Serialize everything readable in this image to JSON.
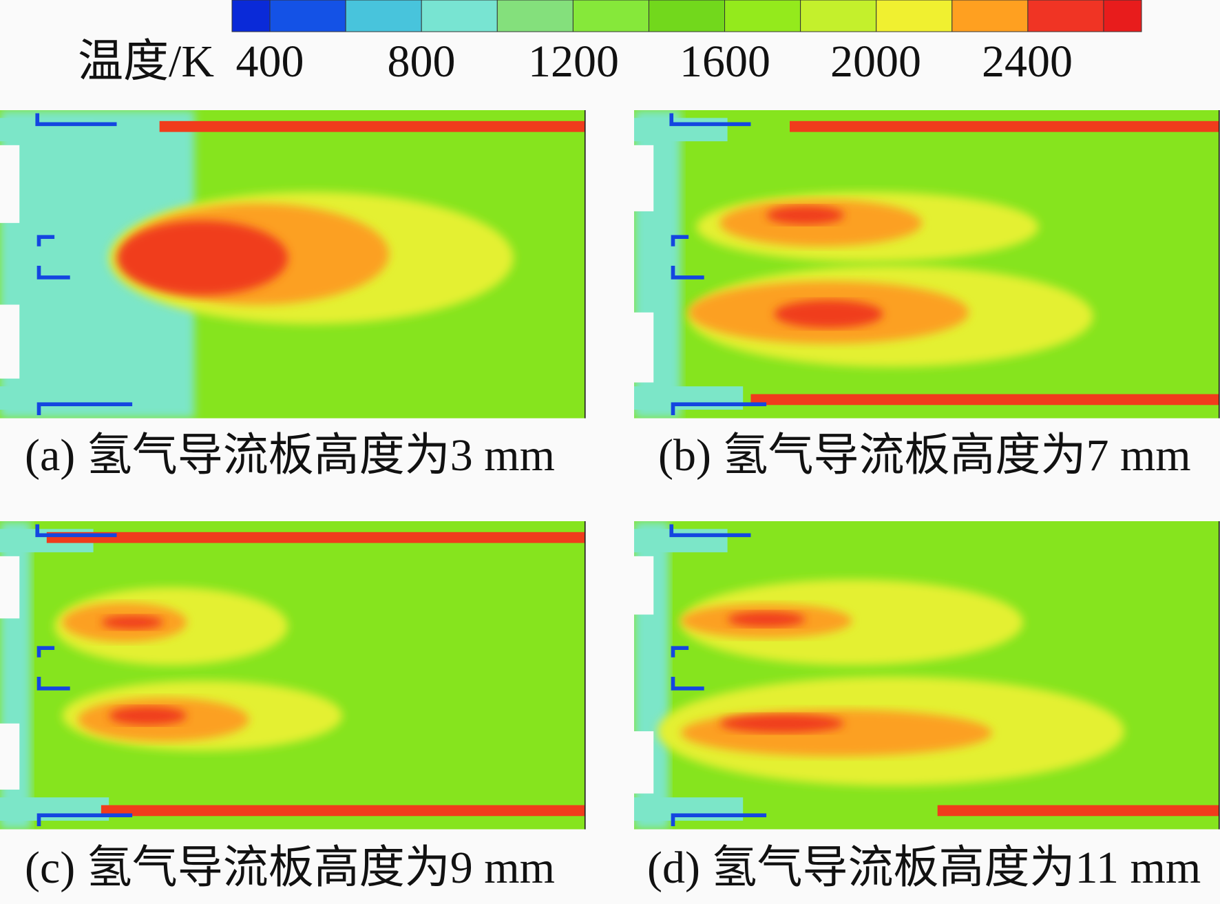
{
  "colorbar": {
    "label": "温度/K",
    "ticks": [
      400,
      800,
      1200,
      1600,
      2000,
      2400
    ]
  },
  "panels": [
    {
      "caption": "(a) 氢气导流板高度为3 mm"
    },
    {
      "caption": "(b) 氢气导流板高度为7 mm"
    },
    {
      "caption": "(c) 氢气导流板高度为9 mm"
    },
    {
      "caption": "(d) 氢气导流板高度为11 mm"
    }
  ]
}
